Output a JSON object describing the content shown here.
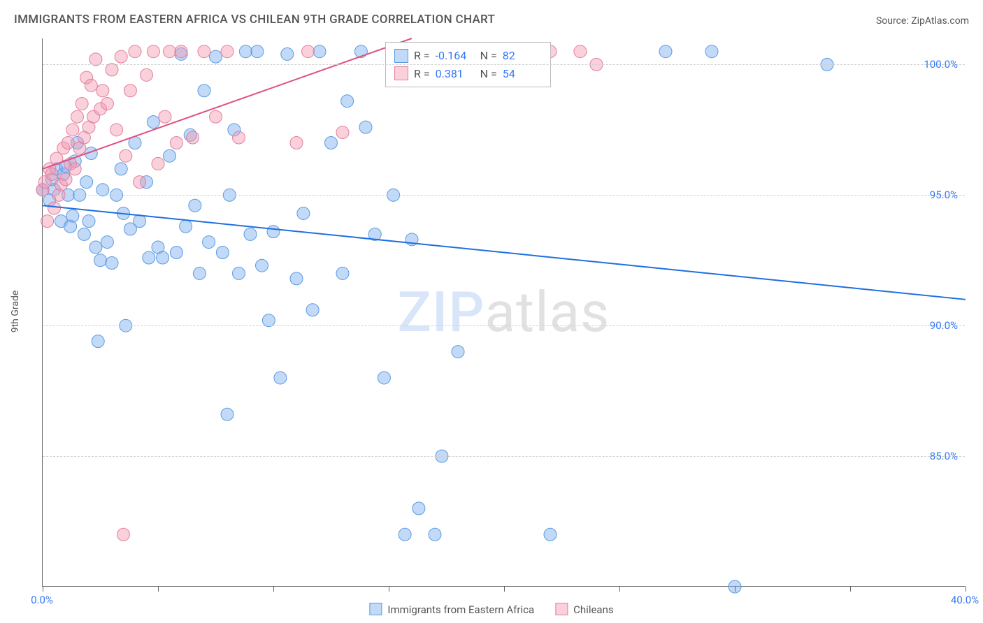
{
  "title": "IMMIGRANTS FROM EASTERN AFRICA VS CHILEAN 9TH GRADE CORRELATION CHART",
  "source_label": "Source:",
  "source_name": "ZipAtlas.com",
  "ylabel": "9th Grade",
  "watermark_zip": "ZIP",
  "watermark_atlas": "atlas",
  "chart": {
    "type": "scatter-with-regression",
    "background_color": "#ffffff",
    "grid_color": "#d0d0d0",
    "axis_color": "#666666",
    "label_color": "#555555",
    "tick_color": "#3478f6",
    "tick_fontsize": 15,
    "title_fontsize": 17,
    "xlim": [
      0,
      40
    ],
    "ylim": [
      80,
      101
    ],
    "xticks": [
      0,
      5,
      10,
      15,
      20,
      25,
      30,
      35,
      40
    ],
    "xtick_labels": {
      "0": "0.0%",
      "40": "40.0%"
    },
    "yticks": [
      85,
      90,
      95,
      100
    ],
    "ytick_labels": {
      "85": "85.0%",
      "90": "90.0%",
      "95": "95.0%",
      "100": "100.0%"
    },
    "series": [
      {
        "name": "Immigrants from Eastern Africa",
        "marker_fill": "rgba(120,170,240,0.45)",
        "marker_stroke": "#5a9be0",
        "marker_radius": 9,
        "line_color": "#1f6fe0",
        "line_width": 2,
        "R": "-0.164",
        "N": "82",
        "regression": {
          "x1": 0,
          "y1": 94.6,
          "x2": 40,
          "y2": 91.0
        },
        "points": [
          [
            0.0,
            95.2
          ],
          [
            0.3,
            94.8
          ],
          [
            0.4,
            95.6
          ],
          [
            0.5,
            95.2
          ],
          [
            0.6,
            96.0
          ],
          [
            0.8,
            94.0
          ],
          [
            0.9,
            95.8
          ],
          [
            1.0,
            96.1
          ],
          [
            1.1,
            95.0
          ],
          [
            1.2,
            93.8
          ],
          [
            1.3,
            94.2
          ],
          [
            1.4,
            96.3
          ],
          [
            1.5,
            97.0
          ],
          [
            1.6,
            95.0
          ],
          [
            1.8,
            93.5
          ],
          [
            1.9,
            95.5
          ],
          [
            2.0,
            94.0
          ],
          [
            2.1,
            96.6
          ],
          [
            2.3,
            93.0
          ],
          [
            2.4,
            89.4
          ],
          [
            2.5,
            92.5
          ],
          [
            2.6,
            95.2
          ],
          [
            2.8,
            93.2
          ],
          [
            3.0,
            92.4
          ],
          [
            3.2,
            95.0
          ],
          [
            3.4,
            96.0
          ],
          [
            3.5,
            94.3
          ],
          [
            3.6,
            90.0
          ],
          [
            3.8,
            93.7
          ],
          [
            4.0,
            97.0
          ],
          [
            4.2,
            94.0
          ],
          [
            4.5,
            95.5
          ],
          [
            4.6,
            92.6
          ],
          [
            4.8,
            97.8
          ],
          [
            5.0,
            93.0
          ],
          [
            5.2,
            92.6
          ],
          [
            5.5,
            96.5
          ],
          [
            5.8,
            92.8
          ],
          [
            6.0,
            100.4
          ],
          [
            6.2,
            93.8
          ],
          [
            6.4,
            97.3
          ],
          [
            6.6,
            94.6
          ],
          [
            6.8,
            92.0
          ],
          [
            7.0,
            99.0
          ],
          [
            7.2,
            93.2
          ],
          [
            7.5,
            100.3
          ],
          [
            7.8,
            92.8
          ],
          [
            8.0,
            86.6
          ],
          [
            8.1,
            95.0
          ],
          [
            8.3,
            97.5
          ],
          [
            8.5,
            92.0
          ],
          [
            8.8,
            100.5
          ],
          [
            9.0,
            93.5
          ],
          [
            9.3,
            100.5
          ],
          [
            9.5,
            92.3
          ],
          [
            9.8,
            90.2
          ],
          [
            10.0,
            93.6
          ],
          [
            10.3,
            88.0
          ],
          [
            10.6,
            100.4
          ],
          [
            11.0,
            91.8
          ],
          [
            11.3,
            94.3
          ],
          [
            11.7,
            90.6
          ],
          [
            12.0,
            100.5
          ],
          [
            12.5,
            97.0
          ],
          [
            13.0,
            92.0
          ],
          [
            13.2,
            98.6
          ],
          [
            13.8,
            100.5
          ],
          [
            14.0,
            97.6
          ],
          [
            14.4,
            93.5
          ],
          [
            14.8,
            88.0
          ],
          [
            15.2,
            95.0
          ],
          [
            15.7,
            82.0
          ],
          [
            16.0,
            93.3
          ],
          [
            16.3,
            83.0
          ],
          [
            17.0,
            82.0
          ],
          [
            17.3,
            85.0
          ],
          [
            18.0,
            89.0
          ],
          [
            22.0,
            82.0
          ],
          [
            27.0,
            100.5
          ],
          [
            29.0,
            100.5
          ],
          [
            30.0,
            80.0
          ],
          [
            34.0,
            100.0
          ]
        ]
      },
      {
        "name": "Chileans",
        "marker_fill": "rgba(245,150,175,0.45)",
        "marker_stroke": "#e07fa0",
        "marker_radius": 9,
        "line_color": "#e05080",
        "line_width": 2,
        "R": "0.381",
        "N": "54",
        "regression": {
          "x1": 0,
          "y1": 96.0,
          "x2": 16,
          "y2": 101.0
        },
        "points": [
          [
            0.0,
            95.2
          ],
          [
            0.1,
            95.5
          ],
          [
            0.2,
            94.0
          ],
          [
            0.3,
            96.0
          ],
          [
            0.4,
            95.8
          ],
          [
            0.5,
            94.5
          ],
          [
            0.6,
            96.4
          ],
          [
            0.7,
            95.0
          ],
          [
            0.8,
            95.4
          ],
          [
            0.9,
            96.8
          ],
          [
            1.0,
            95.6
          ],
          [
            1.1,
            97.0
          ],
          [
            1.2,
            96.2
          ],
          [
            1.3,
            97.5
          ],
          [
            1.4,
            96.0
          ],
          [
            1.5,
            98.0
          ],
          [
            1.6,
            96.8
          ],
          [
            1.7,
            98.5
          ],
          [
            1.8,
            97.2
          ],
          [
            1.9,
            99.5
          ],
          [
            2.0,
            97.6
          ],
          [
            2.1,
            99.2
          ],
          [
            2.2,
            98.0
          ],
          [
            2.3,
            100.2
          ],
          [
            2.5,
            98.3
          ],
          [
            2.6,
            99.0
          ],
          [
            2.8,
            98.5
          ],
          [
            3.0,
            99.8
          ],
          [
            3.2,
            97.5
          ],
          [
            3.4,
            100.3
          ],
          [
            3.5,
            82.0
          ],
          [
            3.6,
            96.5
          ],
          [
            3.8,
            99.0
          ],
          [
            4.0,
            100.5
          ],
          [
            4.2,
            95.5
          ],
          [
            4.5,
            99.6
          ],
          [
            4.8,
            100.5
          ],
          [
            5.0,
            96.2
          ],
          [
            5.3,
            98.0
          ],
          [
            5.5,
            100.5
          ],
          [
            5.8,
            97.0
          ],
          [
            6.0,
            100.5
          ],
          [
            6.5,
            97.2
          ],
          [
            7.0,
            100.5
          ],
          [
            7.5,
            98.0
          ],
          [
            8.0,
            100.5
          ],
          [
            8.5,
            97.2
          ],
          [
            11.0,
            97.0
          ],
          [
            11.5,
            100.5
          ],
          [
            13.0,
            97.4
          ],
          [
            20.5,
            100.5
          ],
          [
            22.0,
            100.5
          ],
          [
            23.3,
            100.5
          ],
          [
            24.0,
            100.0
          ]
        ]
      }
    ]
  },
  "stats_box": {
    "R_label": "R =",
    "N_label": "N ="
  },
  "legend_bottom": [
    {
      "label": "Immigrants from Eastern Africa",
      "fill": "rgba(120,170,240,0.45)",
      "stroke": "#5a9be0"
    },
    {
      "label": "Chileans",
      "fill": "rgba(245,150,175,0.45)",
      "stroke": "#e07fa0"
    }
  ]
}
